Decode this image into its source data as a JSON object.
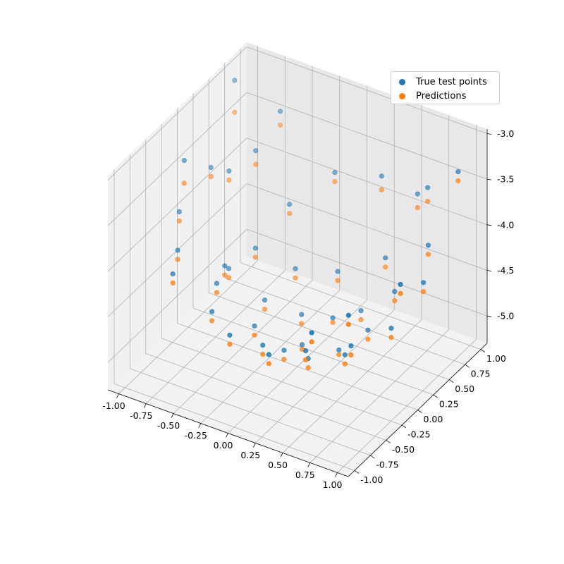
{
  "chart_data": {
    "type": "scatter",
    "projection": "3d",
    "title": "",
    "xlabel": "",
    "ylabel": "",
    "zlabel": "",
    "xlim": [
      -1.1,
      1.1
    ],
    "ylim": [
      -1.1,
      1.1
    ],
    "zlim": [
      -5.3,
      -2.95
    ],
    "x_ticks": [
      "-1.00",
      "-0.75",
      "-0.50",
      "-0.25",
      "0.00",
      "0.25",
      "0.50",
      "0.75",
      "1.00"
    ],
    "y_ticks": [
      "-1.00",
      "-0.75",
      "-0.50",
      "-0.25",
      "0.00",
      "0.25",
      "0.50",
      "0.75",
      "1.00"
    ],
    "z_ticks": [
      "-3.0",
      "-3.5",
      "-4.0",
      "-4.5",
      "-5.0"
    ],
    "grid": true,
    "legend_position": "top-right",
    "series": [
      {
        "name": "True test points",
        "color": "#1f77b4",
        "points": [
          [
            -0.95,
            -0.15,
            -3.35
          ],
          [
            -0.85,
            0.1,
            -3.55
          ],
          [
            -0.88,
            -0.35,
            -3.75
          ],
          [
            -0.8,
            0.3,
            -3.7
          ],
          [
            -0.75,
            -0.6,
            -3.95
          ],
          [
            -0.7,
            0.55,
            -3.6
          ],
          [
            -0.65,
            -0.85,
            -4.0
          ],
          [
            -0.62,
            0.8,
            -3.3
          ],
          [
            -0.55,
            -0.2,
            -4.3
          ],
          [
            -0.5,
            0.2,
            -4.35
          ],
          [
            -0.45,
            -0.5,
            -4.25
          ],
          [
            -0.42,
            0.6,
            -4.1
          ],
          [
            -0.35,
            -0.75,
            -4.35
          ],
          [
            -0.3,
            0.0,
            -4.7
          ],
          [
            -0.25,
            0.4,
            -4.6
          ],
          [
            -0.22,
            -0.3,
            -4.75
          ],
          [
            -0.15,
            0.85,
            -3.8
          ],
          [
            -0.1,
            -0.9,
            -4.4
          ],
          [
            -0.05,
            0.15,
            -4.85
          ],
          [
            0.0,
            -0.55,
            -4.7
          ],
          [
            0.05,
            0.55,
            -4.6
          ],
          [
            0.1,
            -0.1,
            -4.95
          ],
          [
            0.15,
            0.3,
            -4.9
          ],
          [
            0.2,
            -0.8,
            -4.55
          ],
          [
            0.25,
            0.9,
            -3.7
          ],
          [
            0.3,
            -0.35,
            -4.85
          ],
          [
            0.35,
            0.05,
            -5.0
          ],
          [
            0.4,
            0.7,
            -4.4
          ],
          [
            0.45,
            -0.65,
            -4.5
          ],
          [
            0.5,
            0.25,
            -4.85
          ],
          [
            0.55,
            -0.2,
            -4.8
          ],
          [
            0.6,
            0.5,
            -4.55
          ],
          [
            0.65,
            -0.9,
            -4.05
          ],
          [
            0.7,
            0.85,
            -3.6
          ],
          [
            0.75,
            -0.45,
            -4.45
          ],
          [
            0.8,
            0.1,
            -4.6
          ],
          [
            0.85,
            0.6,
            -4.0
          ],
          [
            0.9,
            -0.75,
            -3.85
          ],
          [
            0.95,
            0.35,
            -4.2
          ],
          [
            1.0,
            -0.1,
            -3.9
          ],
          [
            -0.98,
            0.7,
            -3.05
          ],
          [
            -0.6,
            -0.05,
            -4.45
          ],
          [
            0.05,
            -0.3,
            -4.9
          ],
          [
            0.35,
            0.4,
            -4.8
          ],
          [
            0.95,
            0.9,
            -3.35
          ],
          [
            0.55,
            0.95,
            -3.8
          ]
        ]
      },
      {
        "name": "Predictions",
        "color": "#ff7f0e",
        "points": [
          [
            -0.95,
            -0.15,
            -3.6
          ],
          [
            -0.85,
            0.1,
            -3.65
          ],
          [
            -0.88,
            -0.35,
            -3.85
          ],
          [
            -0.8,
            0.3,
            -3.8
          ],
          [
            -0.75,
            -0.6,
            -4.05
          ],
          [
            -0.7,
            0.55,
            -3.75
          ],
          [
            -0.65,
            -0.85,
            -4.1
          ],
          [
            -0.62,
            0.8,
            -3.45
          ],
          [
            -0.55,
            -0.2,
            -4.4
          ],
          [
            -0.5,
            0.2,
            -4.45
          ],
          [
            -0.45,
            -0.5,
            -4.35
          ],
          [
            -0.42,
            0.6,
            -4.2
          ],
          [
            -0.35,
            -0.75,
            -4.45
          ],
          [
            -0.3,
            0.0,
            -4.8
          ],
          [
            -0.25,
            0.4,
            -4.7
          ],
          [
            -0.22,
            -0.3,
            -4.85
          ],
          [
            -0.15,
            0.85,
            -3.9
          ],
          [
            -0.1,
            -0.9,
            -4.5
          ],
          [
            -0.05,
            0.15,
            -4.95
          ],
          [
            0.0,
            -0.55,
            -4.8
          ],
          [
            0.05,
            0.55,
            -4.7
          ],
          [
            0.1,
            -0.1,
            -5.0
          ],
          [
            0.15,
            0.3,
            -4.95
          ],
          [
            0.2,
            -0.8,
            -4.65
          ],
          [
            0.25,
            0.9,
            -3.85
          ],
          [
            0.3,
            -0.35,
            -4.95
          ],
          [
            0.35,
            0.05,
            -5.05
          ],
          [
            0.4,
            0.7,
            -4.5
          ],
          [
            0.45,
            -0.65,
            -4.6
          ],
          [
            0.5,
            0.25,
            -4.95
          ],
          [
            0.55,
            -0.2,
            -4.9
          ],
          [
            0.6,
            0.5,
            -4.65
          ],
          [
            0.65,
            -0.9,
            -4.15
          ],
          [
            0.7,
            0.85,
            -3.75
          ],
          [
            0.75,
            -0.45,
            -4.55
          ],
          [
            0.8,
            0.1,
            -4.7
          ],
          [
            0.85,
            0.6,
            -4.1
          ],
          [
            0.9,
            -0.75,
            -3.95
          ],
          [
            0.95,
            0.35,
            -4.3
          ],
          [
            1.0,
            -0.1,
            -4.0
          ],
          [
            -0.98,
            0.7,
            -3.4
          ],
          [
            -0.6,
            -0.05,
            -4.55
          ],
          [
            0.05,
            -0.3,
            -5.0
          ],
          [
            0.35,
            0.4,
            -4.9
          ],
          [
            0.95,
            0.9,
            -3.45
          ],
          [
            0.55,
            0.95,
            -3.95
          ]
        ]
      }
    ]
  },
  "legend": {
    "items": [
      {
        "label": "True test points",
        "color": "#1f77b4"
      },
      {
        "label": "Predictions",
        "color": "#ff7f0e"
      }
    ]
  }
}
